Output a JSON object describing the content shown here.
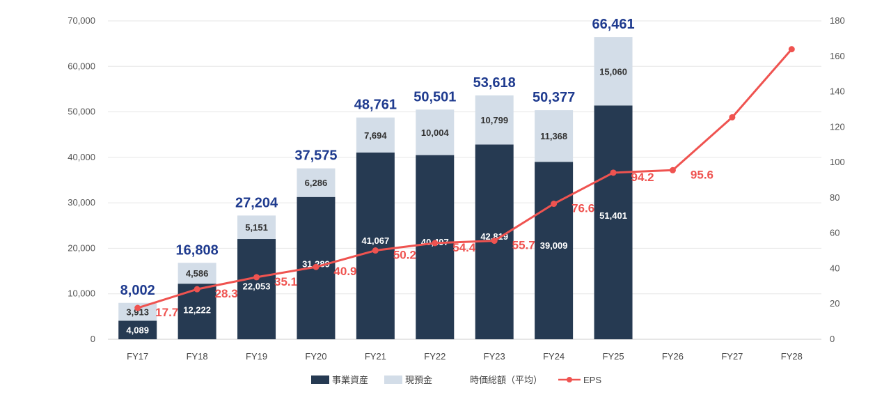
{
  "chart_data": {
    "type": "bar",
    "stacked": true,
    "categories": [
      "FY17",
      "FY18",
      "FY19",
      "FY20",
      "FY21",
      "FY22",
      "FY23",
      "FY24",
      "FY25",
      "FY26",
      "FY27",
      "FY28"
    ],
    "series": [
      {
        "name": "事業資産",
        "type": "bar",
        "axis": "left",
        "color": "#263a52",
        "values": [
          4089,
          12222,
          22053,
          31289,
          41067,
          40497,
          42819,
          39009,
          51401,
          null,
          null,
          null
        ],
        "labels": [
          "4,089",
          "12,222",
          "22,053",
          "31,289",
          "41,067",
          "40,497",
          "42,819",
          "39,009",
          "51,401",
          "",
          "",
          ""
        ]
      },
      {
        "name": "現預金",
        "type": "bar",
        "axis": "left",
        "color": "#d3dde8",
        "values": [
          3913,
          4586,
          5151,
          6286,
          7694,
          10004,
          10799,
          11368,
          15060,
          null,
          null,
          null
        ],
        "labels": [
          "3,913",
          "4,586",
          "5,151",
          "6,286",
          "7,694",
          "10,004",
          "10,799",
          "11,368",
          "15,060",
          "",
          "",
          ""
        ]
      },
      {
        "name": "時価総額（平均）",
        "type": "bar",
        "axis": "left",
        "color": "#ffffff",
        "values": [
          null,
          null,
          null,
          null,
          null,
          null,
          null,
          null,
          null,
          null,
          null,
          null
        ]
      },
      {
        "name": "EPS",
        "type": "line",
        "axis": "right",
        "color": "#ef5350",
        "values": [
          17.7,
          28.3,
          35.1,
          40.9,
          50.2,
          54.4,
          55.7,
          76.6,
          94.2,
          95.6,
          125.5,
          164
        ],
        "labels": [
          "17.7",
          "28.3",
          "35.1",
          "40.9",
          "50.2",
          "54.4",
          "55.7",
          "76.6",
          "94.2",
          "95.6",
          "",
          ""
        ]
      }
    ],
    "totals": [
      8002,
      16808,
      27204,
      37575,
      48761,
      50501,
      53618,
      50377,
      66461,
      null,
      null,
      null
    ],
    "total_labels": [
      "8,002",
      "16,808",
      "27,204",
      "37,575",
      "48,761",
      "50,501",
      "53,618",
      "50,377",
      "66,461",
      "",
      "",
      ""
    ],
    "left_axis": {
      "min": 0,
      "max": 70000,
      "ticks": [
        "0",
        "10,000",
        "20,000",
        "30,000",
        "40,000",
        "50,000",
        "60,000",
        "70,000"
      ]
    },
    "right_axis": {
      "min": 0,
      "max": 180,
      "ticks": [
        "0",
        "20",
        "40",
        "60",
        "80",
        "100",
        "120",
        "140",
        "160",
        "180"
      ]
    },
    "grid": true,
    "legend_position": "bottom",
    "title": "",
    "xlabel": "",
    "ylabel": ""
  }
}
